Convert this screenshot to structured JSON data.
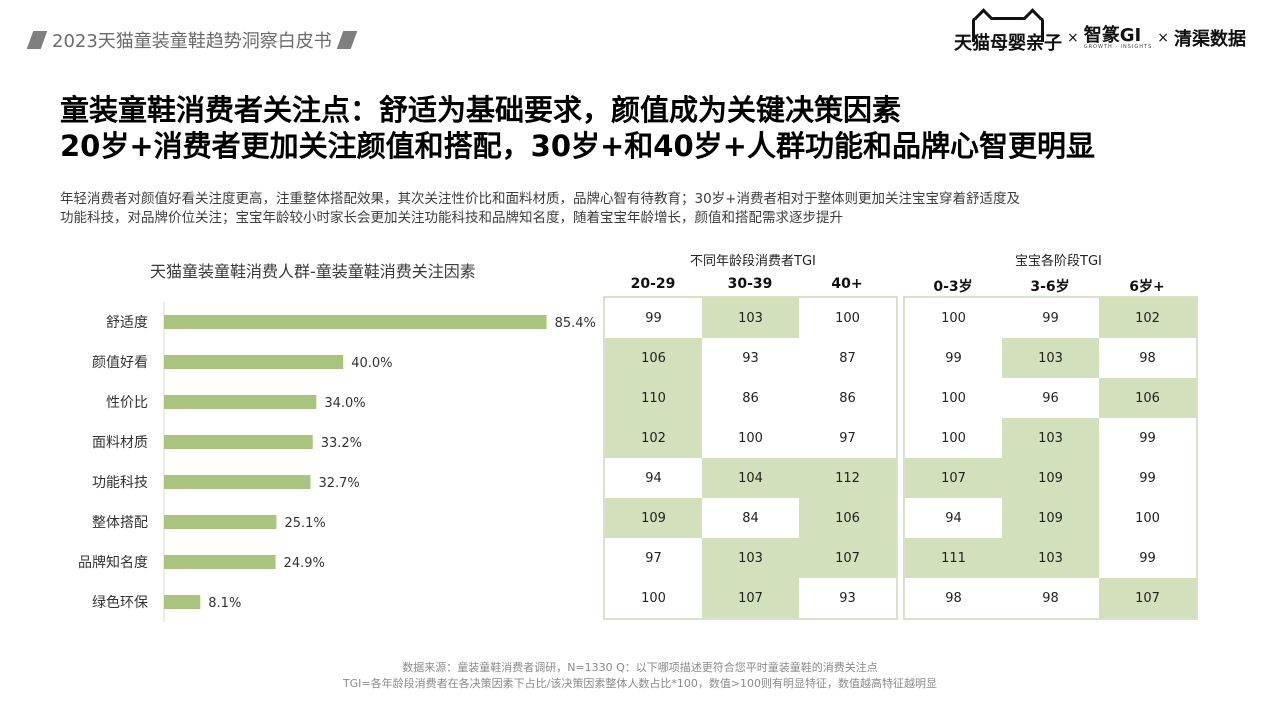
{
  "header": {
    "title": "2023天猫童装童鞋趋势洞察白皮书"
  },
  "logos": {
    "tmall": "天猫母婴亲子",
    "times1": "×",
    "zhi": "智篆GI",
    "zhi_sub": "GROWTH · INSIGHTS",
    "times2": "×",
    "qq": "清渠数据"
  },
  "title": {
    "line1": "童装童鞋消费者关注点：舒适为基础要求，颜值成为关键决策因素",
    "line2": "20岁+消费者更加关注颜值和搭配，30岁+和40岁+人群功能和品牌心智更明显"
  },
  "description": {
    "line1": "年轻消费者对颜值好看关注度更高，注重整体搭配效果，其次关注性价比和面料材质，品牌心智有待教育；30岁+消费者相对于整体则更加关注宝宝穿着舒适度及",
    "line2": "功能科技，对品牌价位关注；宝宝年龄较小时家长会更加关注功能科技和品牌知名度，随着宝宝年龄增长，颜值和搭配需求逐步提升"
  },
  "chart_data": [
    {
      "type": "bar",
      "orientation": "horizontal",
      "title": "天猫童装童鞋消费人群-童装童鞋消费关注因素",
      "categories": [
        "舒适度",
        "颜值好看",
        "性价比",
        "面料材质",
        "功能科技",
        "整体搭配",
        "品牌知名度",
        "绿色环保"
      ],
      "values": [
        85.4,
        40.0,
        34.0,
        33.2,
        32.7,
        25.1,
        24.9,
        8.1
      ],
      "value_labels": [
        "85.4%",
        "40.0%",
        "34.0%",
        "33.2%",
        "32.7%",
        "25.1%",
        "24.9%",
        "8.1%"
      ],
      "unit": "%",
      "xlim": [
        0,
        100
      ],
      "bar_color": "#a9c47f"
    },
    {
      "type": "table",
      "title": "不同年龄段消费者TGI",
      "columns": [
        "20-29",
        "30-39",
        "40+"
      ],
      "rows": [
        [
          99,
          103,
          100
        ],
        [
          106,
          93,
          87
        ],
        [
          110,
          86,
          86
        ],
        [
          102,
          100,
          97
        ],
        [
          94,
          104,
          112
        ],
        [
          109,
          84,
          106
        ],
        [
          97,
          103,
          107
        ],
        [
          100,
          107,
          93
        ]
      ],
      "highlight": [
        [
          false,
          true,
          false
        ],
        [
          true,
          false,
          false
        ],
        [
          true,
          false,
          false
        ],
        [
          true,
          false,
          false
        ],
        [
          false,
          true,
          true
        ],
        [
          true,
          false,
          true
        ],
        [
          false,
          true,
          true
        ],
        [
          false,
          true,
          false
        ]
      ],
      "highlight_color": "#d2e0bb"
    },
    {
      "type": "table",
      "title": "宝宝各阶段TGI",
      "columns": [
        "0-3岁",
        "3-6岁",
        "6岁+"
      ],
      "rows": [
        [
          100,
          99,
          102
        ],
        [
          99,
          103,
          98
        ],
        [
          100,
          96,
          106
        ],
        [
          100,
          103,
          99
        ],
        [
          107,
          109,
          99
        ],
        [
          94,
          109,
          100
        ],
        [
          111,
          103,
          99
        ],
        [
          98,
          98,
          107
        ]
      ],
      "highlight": [
        [
          false,
          false,
          true
        ],
        [
          false,
          true,
          false
        ],
        [
          false,
          false,
          true
        ],
        [
          false,
          true,
          false
        ],
        [
          true,
          true,
          false
        ],
        [
          false,
          true,
          false
        ],
        [
          true,
          true,
          false
        ],
        [
          false,
          false,
          true
        ]
      ],
      "highlight_color": "#d2e0bb"
    }
  ],
  "footer": {
    "line1": "数据来源：童装童鞋消费者调研，N=1330   Q：以下哪项描述更符合您平时童装童鞋的消费关注点",
    "line2": "TGI=各年龄段消费者在各决策因素下占比/该决策因素整体人数占比*100，数值>100则有明显特征，数值越高特征越明显"
  }
}
